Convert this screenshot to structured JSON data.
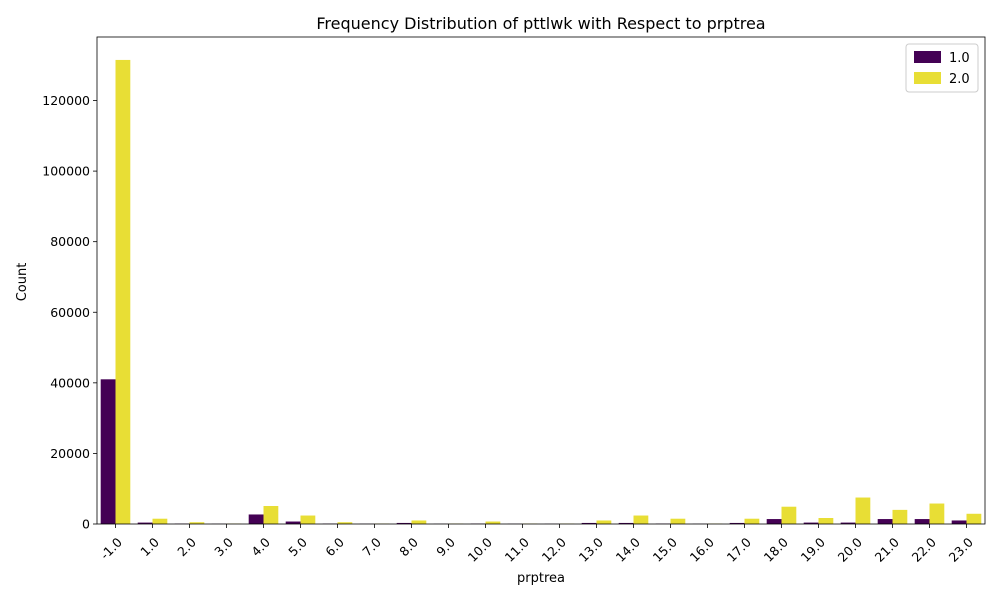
{
  "chart_data": {
    "type": "bar",
    "title": "Frequency Distribution of pttlwk with Respect to prptrea",
    "xlabel": "prptrea",
    "ylabel": "Count",
    "categories": [
      "-1.0",
      "1.0",
      "2.0",
      "3.0",
      "4.0",
      "5.0",
      "6.0",
      "7.0",
      "8.0",
      "9.0",
      "10.0",
      "11.0",
      "12.0",
      "13.0",
      "14.0",
      "15.0",
      "16.0",
      "17.0",
      "18.0",
      "19.0",
      "20.0",
      "21.0",
      "22.0",
      "23.0"
    ],
    "series": [
      {
        "name": "1.0",
        "color": "#440154",
        "values": [
          41000,
          400,
          100,
          50,
          2700,
          700,
          100,
          50,
          300,
          50,
          100,
          50,
          50,
          300,
          300,
          100,
          50,
          300,
          1400,
          400,
          400,
          1400,
          1400,
          1000
        ]
      },
      {
        "name": "2.0",
        "color": "#e8de35",
        "values": [
          131500,
          1500,
          500,
          100,
          5100,
          2400,
          500,
          100,
          1000,
          100,
          700,
          100,
          100,
          1000,
          2400,
          1500,
          100,
          1500,
          4900,
          1700,
          7500,
          4000,
          5800,
          2900
        ]
      }
    ],
    "yticks": [
      0,
      20000,
      40000,
      60000,
      80000,
      100000,
      120000
    ],
    "ylim": [
      0,
      138000
    ],
    "grid": false,
    "legend_position": "top-right"
  }
}
